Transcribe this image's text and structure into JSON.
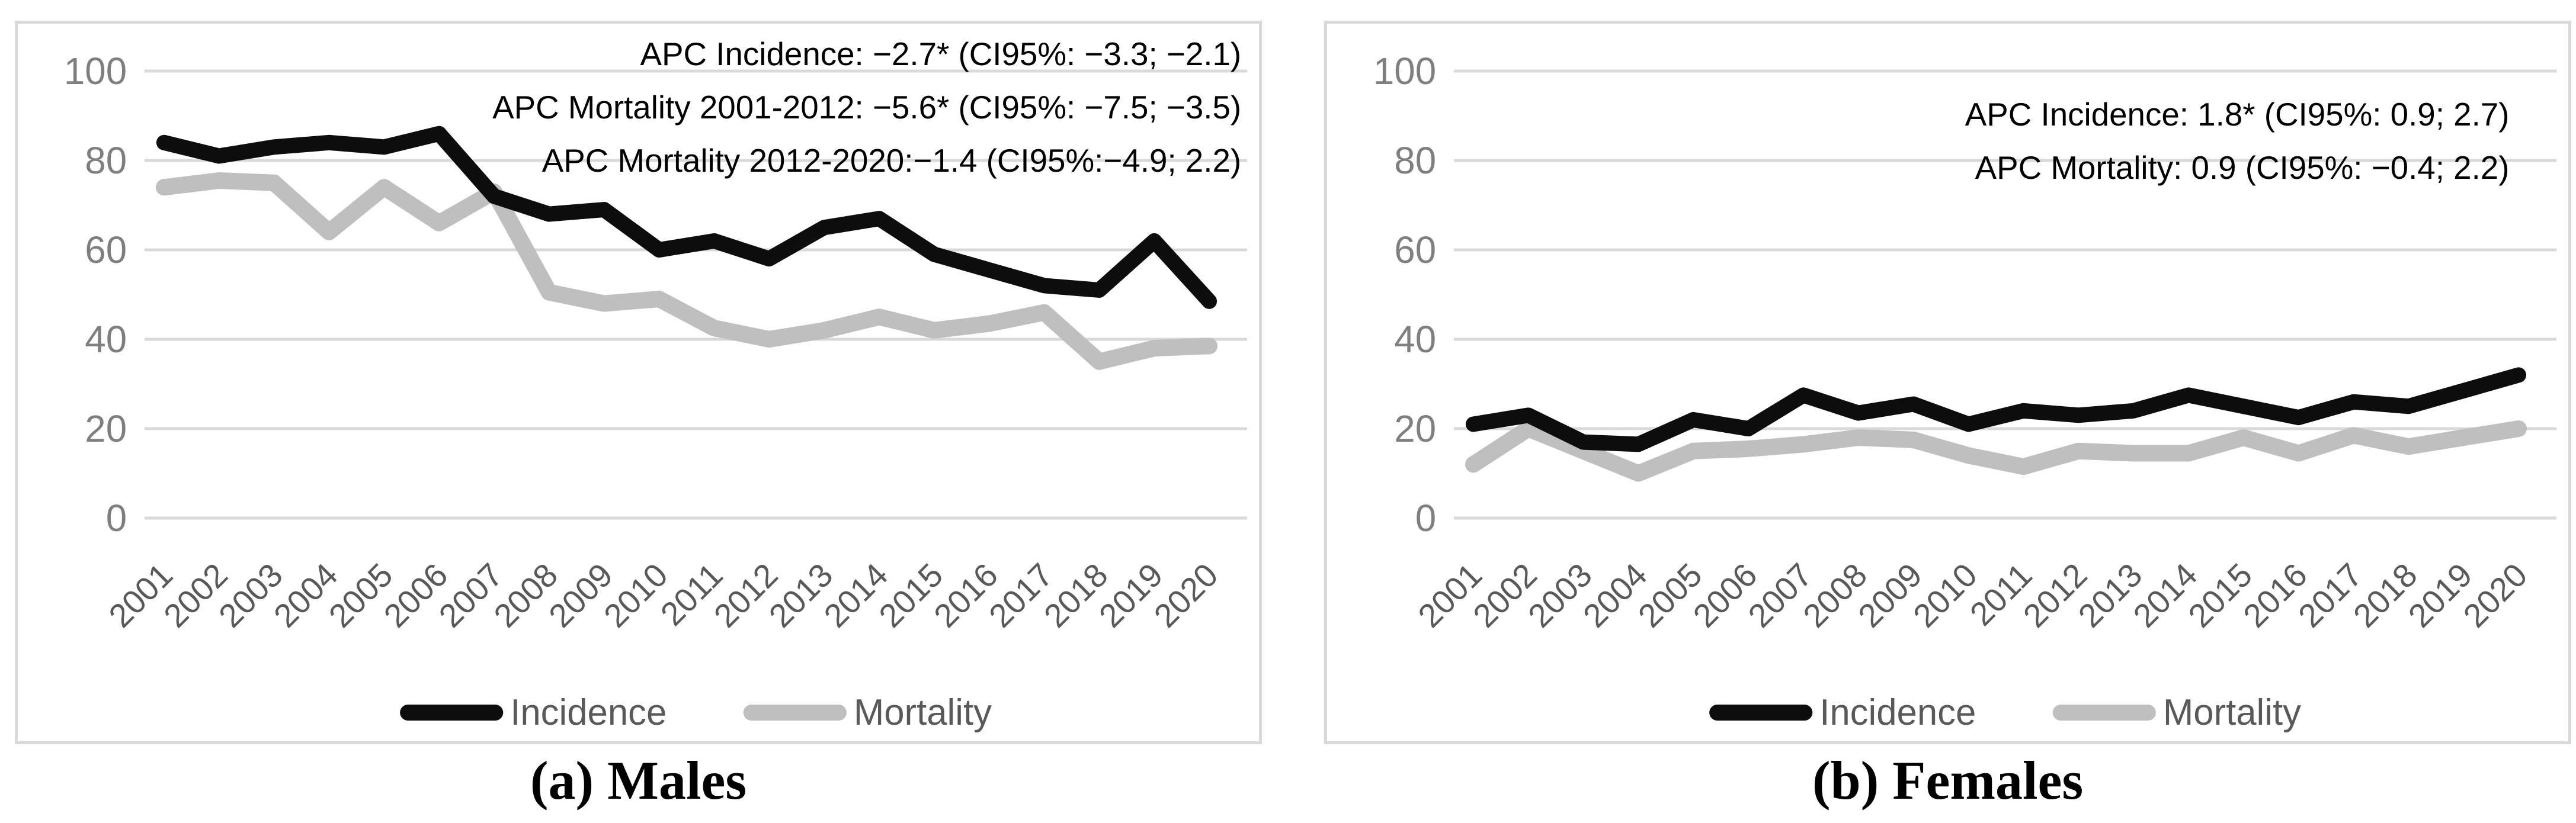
{
  "figure": {
    "captions": {
      "a": "(a) Males",
      "b": "(b) Females"
    },
    "colors": {
      "incidence": "#0d0d0d",
      "mortality": "#bfbfbf",
      "gridline": "#d9d9d9",
      "panel_border": "#d9d9d9",
      "y_tick_text": "#7f7f7f",
      "x_tick_text": "#595959",
      "legend_text": "#595959",
      "annotation_text": "#000000",
      "background": "#ffffff"
    },
    "legend": {
      "incidence_label": "Incidence",
      "mortality_label": "Mortality"
    }
  },
  "chart_data": [
    {
      "type": "line",
      "title": "(a) Males",
      "x": [
        "2001",
        "2002",
        "2003",
        "2004",
        "2005",
        "2006",
        "2007",
        "2008",
        "2009",
        "2010",
        "2011",
        "2012",
        "2013",
        "2014",
        "2015",
        "2016",
        "2017",
        "2018",
        "2019",
        "2020"
      ],
      "series": [
        {
          "name": "Incidence",
          "color_key": "incidence",
          "values": [
            84,
            81,
            83,
            84,
            83,
            86,
            72,
            68,
            69,
            60,
            62,
            58,
            65,
            67,
            59,
            55.5,
            52,
            51,
            62,
            48.5
          ]
        },
        {
          "name": "Mortality",
          "color_key": "mortality",
          "values": [
            74,
            75.5,
            75,
            64,
            74,
            66,
            73,
            50.5,
            48,
            49,
            42.5,
            40,
            42,
            45,
            42,
            43.5,
            46,
            35,
            38,
            38.5
          ]
        }
      ],
      "ylim": [
        0,
        100
      ],
      "yticks": [
        0,
        20,
        40,
        60,
        80,
        100
      ],
      "grid": "horizontal",
      "legend_position": "bottom",
      "annotations": [
        "APC Incidence: −2.7* (CI95%: −3.3; −2.1)",
        "APC Mortality 2001-2012: −5.6* (CI95%: −7.5; −3.5)",
        "APC Mortality 2012-2020:−1.4 (CI95%:−4.9; 2.2)"
      ]
    },
    {
      "type": "line",
      "title": "(b) Females",
      "x": [
        "2001",
        "2002",
        "2003",
        "2004",
        "2005",
        "2006",
        "2007",
        "2008",
        "2009",
        "2010",
        "2011",
        "2012",
        "2013",
        "2014",
        "2015",
        "2016",
        "2017",
        "2018",
        "2019",
        "2020"
      ],
      "series": [
        {
          "name": "Incidence",
          "color_key": "incidence",
          "values": [
            21,
            23,
            17,
            16.5,
            22,
            20,
            27.5,
            23.5,
            25.5,
            21,
            24,
            23,
            24,
            27.5,
            25,
            22.5,
            26,
            25,
            28.5,
            32
          ]
        },
        {
          "name": "Mortality",
          "color_key": "mortality",
          "values": [
            12,
            20,
            15,
            10,
            15,
            15.5,
            16.5,
            18,
            17.5,
            14,
            11.5,
            15,
            14.5,
            14.5,
            18,
            14.5,
            18.5,
            16,
            18,
            20
          ]
        }
      ],
      "ylim": [
        0,
        100
      ],
      "yticks": [
        0,
        20,
        40,
        60,
        80,
        100
      ],
      "grid": "horizontal",
      "legend_position": "bottom",
      "annotations": [
        "APC Incidence: 1.8* (CI95%: 0.9; 2.7)",
        "APC Mortality: 0.9 (CI95%: −0.4; 2.2)"
      ]
    }
  ]
}
